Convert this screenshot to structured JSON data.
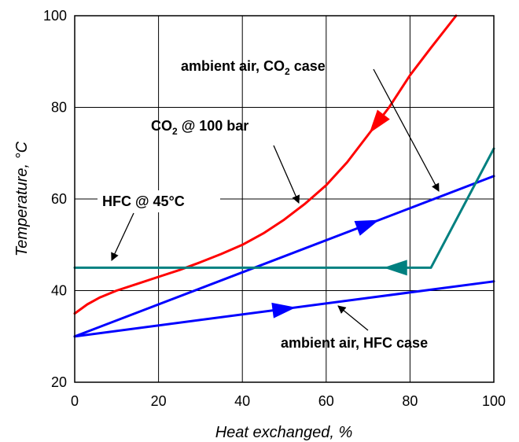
{
  "chart_data": {
    "type": "line",
    "xlabel": "Heat exchanged, %",
    "ylabel": "Temperature, °C",
    "xlim": [
      0,
      100
    ],
    "ylim": [
      20,
      100
    ],
    "xticks": [
      "0",
      "20",
      "40",
      "60",
      "80",
      "100"
    ],
    "yticks": [
      "20",
      "40",
      "60",
      "80",
      "100"
    ],
    "grid": true,
    "series": [
      {
        "name": "CO2 @ 100 bar",
        "color": "#ff0000",
        "points": [
          [
            0,
            35
          ],
          [
            3,
            37
          ],
          [
            6,
            38.5
          ],
          [
            10,
            40
          ],
          [
            15,
            41.5
          ],
          [
            20,
            43
          ],
          [
            25,
            44.5
          ],
          [
            30,
            46.2
          ],
          [
            35,
            48
          ],
          [
            40,
            50
          ],
          [
            45,
            52.5
          ],
          [
            50,
            55.5
          ],
          [
            55,
            59
          ],
          [
            60,
            63
          ],
          [
            65,
            68
          ],
          [
            70,
            74
          ],
          [
            75,
            80
          ],
          [
            80,
            87
          ],
          [
            85,
            93
          ],
          [
            91,
            100
          ]
        ]
      },
      {
        "name": "ambient air, CO2 case",
        "color": "#0000ff",
        "points": [
          [
            0,
            30
          ],
          [
            100,
            65
          ]
        ]
      },
      {
        "name": "HFC @ 45°C",
        "color": "#008080",
        "points": [
          [
            0,
            45
          ],
          [
            85,
            45
          ],
          [
            100,
            71
          ]
        ]
      },
      {
        "name": "ambient air, HFC case",
        "color": "#0000ff",
        "points": [
          [
            0,
            30
          ],
          [
            100,
            42
          ]
        ]
      }
    ],
    "annotations": [
      {
        "id": "ann-co2-100bar",
        "main": "CO",
        "sub": "2",
        "tail": " @ 100 bar",
        "arrow_to": [
          53,
          56
        ]
      },
      {
        "id": "ann-ambient-co2",
        "main": "ambient air, CO",
        "sub": "2",
        "tail": " case",
        "arrow_to": [
          87,
          62
        ]
      },
      {
        "id": "ann-hfc-45",
        "main": "HFC @ 45°C",
        "arrow_to": [
          10,
          46.3
        ]
      },
      {
        "id": "ann-ambient-hfc",
        "main": "ambient air, HFC case",
        "arrow_to": [
          63,
          38.5
        ]
      }
    ]
  }
}
